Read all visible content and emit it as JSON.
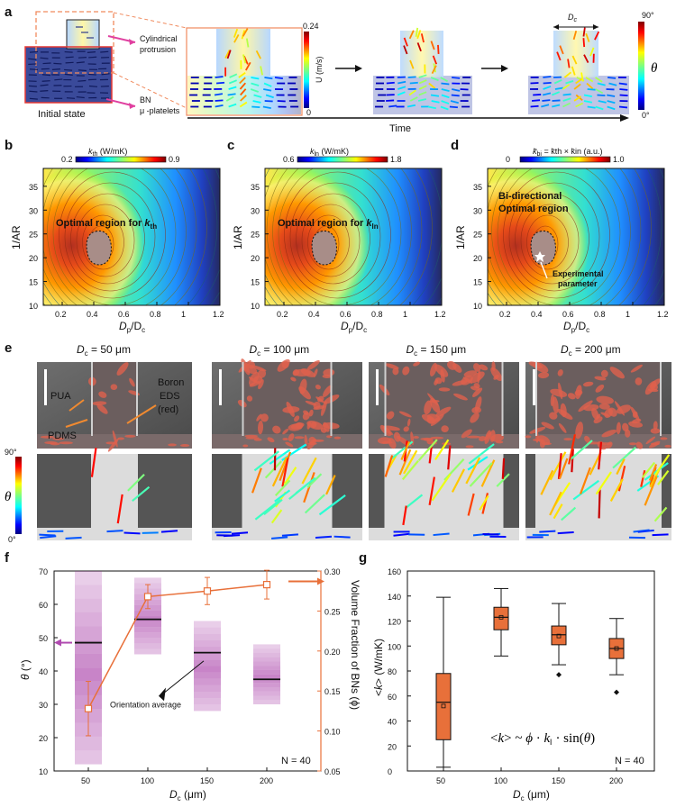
{
  "panels": {
    "a": "a",
    "b": "b",
    "c": "c",
    "d": "d",
    "e": "e",
    "f": "f",
    "g": "g"
  },
  "panel_a": {
    "cylindrical": "Cylindrical",
    "protrusion": "protrusion",
    "bn": "BN",
    "platelets": "μ -platelets",
    "initial": "Initial state",
    "time": "Time",
    "u_label": "U (m/s)",
    "u_max": "0.24",
    "u_min": "0",
    "dc": "D",
    "dc_sub": "c",
    "theta": "θ",
    "theta_max": "90°",
    "theta_min": "0°"
  },
  "contours": [
    {
      "cb_label": "k",
      "cb_sub": "th",
      "cb_unit": " (W/mK)",
      "cb_min": "0.2",
      "cb_max": "0.9",
      "region": "Optimal region for",
      "region_k": "k",
      "region_sub": "th"
    },
    {
      "cb_label": "k",
      "cb_sub": "ln",
      "cb_unit": " (W/mK)",
      "cb_min": "0.6",
      "cb_max": "1.8",
      "region": "Optimal region for",
      "region_k": "k",
      "region_sub": "ln"
    },
    {
      "cb_label": "k̄",
      "cb_sub": "bi",
      "cb_unit": " = k̄th × k̄in   (a.u.)",
      "cb_min": "0",
      "cb_max": "1.0",
      "region": "Bi-directional",
      "region2": "Optimal region",
      "exp1": "Experimental",
      "exp2": "parameter"
    }
  ],
  "contour_axes": {
    "ylabel": "1/AR",
    "xlabel": "D",
    "xlabel_sub1": "p",
    "xlabel_mid": "/D",
    "xlabel_sub2": "c",
    "yticks": [
      "10",
      "15",
      "20",
      "25",
      "30",
      "35"
    ],
    "xticks": [
      "0.2",
      "0.4",
      "0.6",
      "0.8",
      "1",
      "1.2"
    ]
  },
  "panel_e": {
    "titles": [
      "Dc = 50 μm",
      "Dc = 100 μm",
      "Dc = 150 μm",
      "Dc = 200 μm"
    ],
    "pua": "PUA",
    "pdms": "PDMS",
    "boron": "Boron",
    "eds": "EDS",
    "red": "(red)",
    "theta": "θ",
    "theta_max": "90°",
    "theta_min": "0°"
  },
  "chart_data": [
    {
      "type": "line",
      "panel": "f",
      "title": "",
      "xlabel": "Dc (μm)",
      "ylabel": "θ (°)",
      "ylabel_right": "Volume Fraction of BNs (ϕ)",
      "categories": [
        "50",
        "100",
        "150",
        "200"
      ],
      "ylim": [
        10,
        70
      ],
      "ylim_right": [
        0.05,
        0.3
      ],
      "yticks": [
        "10",
        "20",
        "30",
        "40",
        "50",
        "60",
        "70"
      ],
      "yticks_right": [
        "0.05",
        "0.10",
        "0.15",
        "0.20",
        "0.25",
        "0.30"
      ],
      "series": [
        {
          "name": "Orientation average θ",
          "values": [
            48.5,
            55.5,
            45.5,
            37.5
          ],
          "band_min": [
            12,
            45,
            28,
            30
          ],
          "band_max": [
            70,
            68,
            55,
            48
          ]
        },
        {
          "name": "Volume fraction ϕ",
          "values": [
            0.128,
            0.268,
            0.275,
            0.283
          ],
          "err": [
            0.034,
            0.015,
            0.017,
            0.018
          ]
        }
      ],
      "annotation": "Orientation average",
      "n_label": "N = 40"
    },
    {
      "type": "box",
      "panel": "g",
      "title": "",
      "xlabel": "Dc (μm)",
      "ylabel": "<k> (W/mK)",
      "categories": [
        "50",
        "100",
        "150",
        "200"
      ],
      "ylim": [
        0,
        160
      ],
      "yticks": [
        "0",
        "20",
        "40",
        "60",
        "80",
        "100",
        "120",
        "140",
        "160"
      ],
      "boxes": [
        {
          "whisker_low": 3,
          "q1": 25,
          "median": 55,
          "q3": 78,
          "whisker_high": 139,
          "mean": 52,
          "outliers": []
        },
        {
          "whisker_low": 92,
          "q1": 113,
          "median": 123,
          "q3": 131,
          "whisker_high": 146,
          "mean": 123,
          "outliers": []
        },
        {
          "whisker_low": 85,
          "q1": 101,
          "median": 109,
          "q3": 116,
          "whisker_high": 134,
          "mean": 108,
          "outliers": [
            77
          ]
        },
        {
          "whisker_low": 77,
          "q1": 90,
          "median": 98,
          "q3": 106,
          "whisker_high": 122,
          "mean": 98,
          "outliers": [
            63
          ]
        }
      ],
      "equation": "<k>  ~ ϕ · k‖ · sin(θ)",
      "n_label": "N = 40"
    }
  ]
}
